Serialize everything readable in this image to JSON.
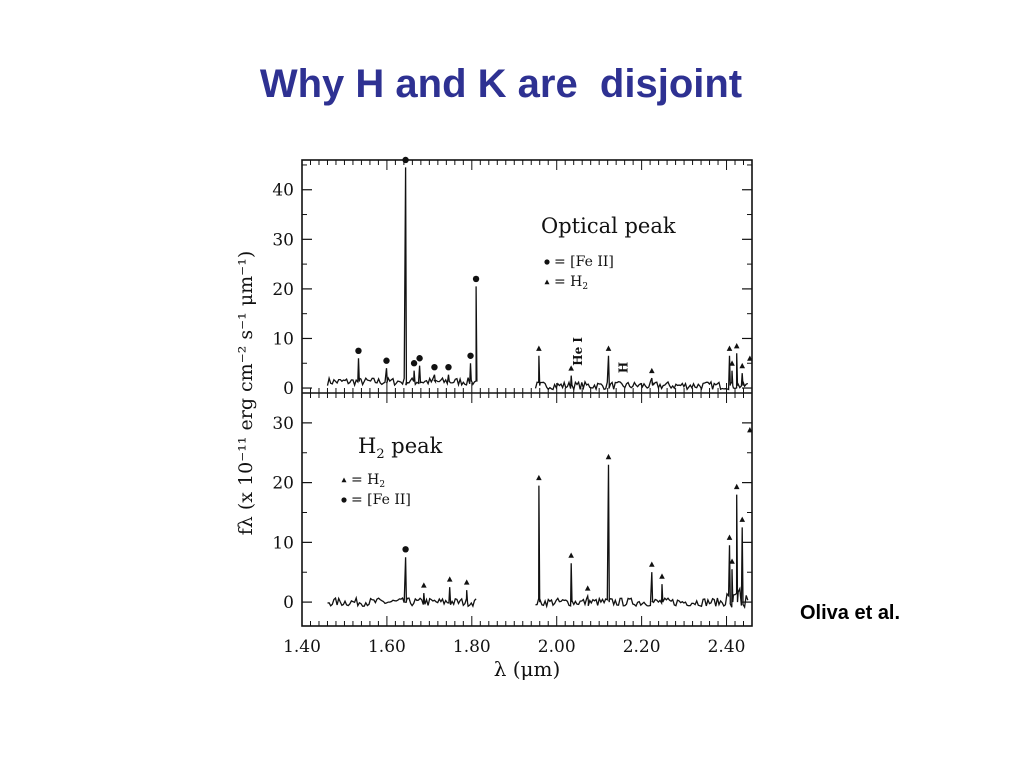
{
  "slide": {
    "title": "Why H and K are  disjoint",
    "citation": "Oliva et al."
  },
  "colors": {
    "title": "#2e3192",
    "ink": "#111111"
  },
  "chart_data": [
    {
      "type": "line",
      "panel": "top",
      "title": "Optical peak",
      "xlabel": "λ (μm)",
      "ylabel": "fλ (x 10⁻¹¹ erg cm⁻² s⁻¹ μm⁻¹)",
      "xlim": [
        1.4,
        2.46
      ],
      "ylim": [
        -1,
        46
      ],
      "y_ticks": [
        0,
        10,
        20,
        30,
        40
      ],
      "x_ticks": [
        1.4,
        1.6,
        1.8,
        2.0,
        2.2,
        2.4
      ],
      "continuum_segments": [
        [
          1.46,
          1.81,
          1.3
        ],
        [
          1.95,
          2.45,
          0.5
        ]
      ],
      "legend": [
        {
          "marker": "circle",
          "label": "= [Fe II]"
        },
        {
          "marker": "triangle",
          "label": "= H2"
        }
      ],
      "annotations": [
        {
          "text": "He I",
          "x": 2.06,
          "y": 4.5
        },
        {
          "text": "H",
          "x": 2.167,
          "y": 3
        }
      ],
      "lines": [
        {
          "x": 1.533,
          "y": 6.5,
          "marker": "circle"
        },
        {
          "x": 1.599,
          "y": 4.5,
          "marker": "circle"
        },
        {
          "x": 1.644,
          "y": 45,
          "marker": "circle"
        },
        {
          "x": 1.664,
          "y": 4,
          "marker": "circle"
        },
        {
          "x": 1.677,
          "y": 5,
          "marker": "circle"
        },
        {
          "x": 1.712,
          "y": 3.2,
          "marker": "circle"
        },
        {
          "x": 1.745,
          "y": 3.2,
          "marker": "circle"
        },
        {
          "x": 1.797,
          "y": 5.5,
          "marker": "circle"
        },
        {
          "x": 1.81,
          "y": 21,
          "marker": "circle"
        },
        {
          "x": 1.958,
          "y": 7,
          "marker": "triangle"
        },
        {
          "x": 2.034,
          "y": 3,
          "marker": "triangle"
        },
        {
          "x": 2.122,
          "y": 7,
          "marker": "triangle"
        },
        {
          "x": 2.224,
          "y": 2.5,
          "marker": "triangle"
        },
        {
          "x": 2.407,
          "y": 7,
          "marker": "triangle"
        },
        {
          "x": 2.413,
          "y": 4,
          "marker": "triangle"
        },
        {
          "x": 2.424,
          "y": 7.5,
          "marker": "triangle"
        },
        {
          "x": 2.437,
          "y": 3.5,
          "marker": "triangle"
        },
        {
          "x": 2.455,
          "y": 5,
          "marker": "triangle"
        }
      ]
    },
    {
      "type": "line",
      "panel": "bottom",
      "title": "H2 peak",
      "xlabel": "λ (μm)",
      "ylabel": "fλ (x 10⁻¹¹ erg cm⁻² s⁻¹ μm⁻¹)",
      "xlim": [
        1.4,
        2.46
      ],
      "ylim": [
        -4,
        35
      ],
      "y_ticks": [
        0,
        10,
        20,
        30
      ],
      "x_ticks": [
        1.4,
        1.6,
        1.8,
        2.0,
        2.2,
        2.4
      ],
      "continuum_segments": [
        [
          1.46,
          1.81,
          0
        ],
        [
          1.95,
          2.45,
          0
        ]
      ],
      "legend": [
        {
          "marker": "triangle",
          "label": "= H2"
        },
        {
          "marker": "circle",
          "label": "= [Fe II]"
        }
      ],
      "lines": [
        {
          "x": 1.644,
          "y": 8,
          "marker": "circle"
        },
        {
          "x": 1.687,
          "y": 2,
          "marker": "triangle"
        },
        {
          "x": 1.748,
          "y": 3,
          "marker": "triangle"
        },
        {
          "x": 1.788,
          "y": 2.5,
          "marker": "triangle"
        },
        {
          "x": 1.958,
          "y": 20,
          "marker": "triangle"
        },
        {
          "x": 2.034,
          "y": 7,
          "marker": "triangle"
        },
        {
          "x": 2.073,
          "y": 1.5,
          "marker": "triangle"
        },
        {
          "x": 2.122,
          "y": 23.5,
          "marker": "triangle"
        },
        {
          "x": 2.224,
          "y": 5.5,
          "marker": "triangle"
        },
        {
          "x": 2.248,
          "y": 3.5,
          "marker": "triangle"
        },
        {
          "x": 2.407,
          "y": 10,
          "marker": "triangle"
        },
        {
          "x": 2.413,
          "y": 6,
          "marker": "triangle"
        },
        {
          "x": 2.424,
          "y": 18.5,
          "marker": "triangle"
        },
        {
          "x": 2.437,
          "y": 13,
          "marker": "triangle"
        },
        {
          "x": 2.455,
          "y": 28,
          "marker": "triangle"
        }
      ]
    }
  ]
}
